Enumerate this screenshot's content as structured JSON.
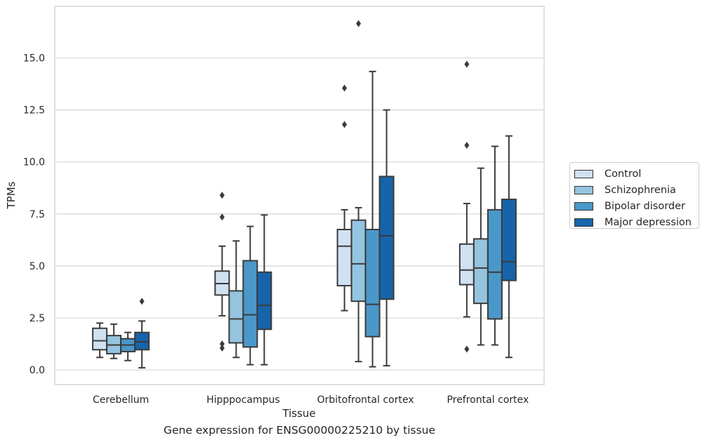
{
  "chart_data": {
    "type": "box",
    "title": "",
    "caption": "Gene expression for ENSG00000225210 by tissue",
    "xlabel": "Tissue",
    "ylabel": "TPMs",
    "ylim": [
      -0.7,
      17.8
    ],
    "yticks": [
      0.0,
      2.5,
      5.0,
      7.5,
      10.0,
      12.5,
      15.0
    ],
    "ytick_labels": [
      "0.0",
      "2.5",
      "5.0",
      "7.5",
      "10.0",
      "12.5",
      "15.0"
    ],
    "grid": "horizontal",
    "legend_position": "right",
    "categories": [
      "Cerebellum",
      "Hipppocampus",
      "Orbitofrontal cortex",
      "Prefrontal cortex"
    ],
    "series": [
      {
        "name": "Control",
        "color": "#d0e1f2",
        "boxes": [
          {
            "whislo": 0.6,
            "q1": 0.97,
            "med": 1.4,
            "q3": 2.0,
            "whishi": 2.25,
            "fliers": []
          },
          {
            "whislo": 2.6,
            "q1": 3.6,
            "med": 4.15,
            "q3": 4.75,
            "whishi": 5.95,
            "fliers": [
              8.4,
              7.35,
              1.25,
              1.05
            ]
          },
          {
            "whislo": 2.85,
            "q1": 4.05,
            "med": 5.95,
            "q3": 6.75,
            "whishi": 7.7,
            "fliers": [
              13.55,
              11.8
            ]
          },
          {
            "whislo": 2.55,
            "q1": 4.1,
            "med": 4.8,
            "q3": 6.05,
            "whishi": 8.0,
            "fliers": [
              14.7,
              10.8,
              1.0
            ]
          }
        ]
      },
      {
        "name": "Schizophrenia",
        "color": "#94c4df",
        "boxes": [
          {
            "whislo": 0.55,
            "q1": 0.78,
            "med": 1.2,
            "q3": 1.65,
            "whishi": 2.2,
            "fliers": []
          },
          {
            "whislo": 0.6,
            "q1": 1.3,
            "med": 2.45,
            "q3": 3.8,
            "whishi": 6.2,
            "fliers": []
          },
          {
            "whislo": 0.4,
            "q1": 3.3,
            "med": 5.1,
            "q3": 7.2,
            "whishi": 7.8,
            "fliers": [
              16.65
            ]
          },
          {
            "whislo": 1.2,
            "q1": 3.2,
            "med": 4.9,
            "q3": 6.3,
            "whishi": 9.7,
            "fliers": []
          }
        ]
      },
      {
        "name": "Bipolar disorder",
        "color": "#4a98c9",
        "boxes": [
          {
            "whislo": 0.45,
            "q1": 0.88,
            "med": 1.2,
            "q3": 1.5,
            "whishi": 1.8,
            "fliers": []
          },
          {
            "whislo": 0.25,
            "q1": 1.1,
            "med": 2.65,
            "q3": 5.25,
            "whishi": 6.9,
            "fliers": []
          },
          {
            "whislo": 0.15,
            "q1": 1.6,
            "med": 3.15,
            "q3": 6.75,
            "whishi": 14.35,
            "fliers": []
          },
          {
            "whislo": 1.2,
            "q1": 2.45,
            "med": 4.7,
            "q3": 7.7,
            "whishi": 10.75,
            "fliers": []
          }
        ]
      },
      {
        "name": "Major depression",
        "color": "#1764ab",
        "boxes": [
          {
            "whislo": 0.1,
            "q1": 0.97,
            "med": 1.35,
            "q3": 1.8,
            "whishi": 2.35,
            "fliers": [
              3.3
            ]
          },
          {
            "whislo": 0.25,
            "q1": 1.95,
            "med": 3.1,
            "q3": 4.7,
            "whishi": 7.45,
            "fliers": []
          },
          {
            "whislo": 0.2,
            "q1": 3.4,
            "med": 6.45,
            "q3": 9.3,
            "whishi": 12.5,
            "fliers": []
          },
          {
            "whislo": 0.6,
            "q1": 4.3,
            "med": 5.2,
            "q3": 8.2,
            "whishi": 11.25,
            "fliers": []
          }
        ]
      }
    ]
  }
}
